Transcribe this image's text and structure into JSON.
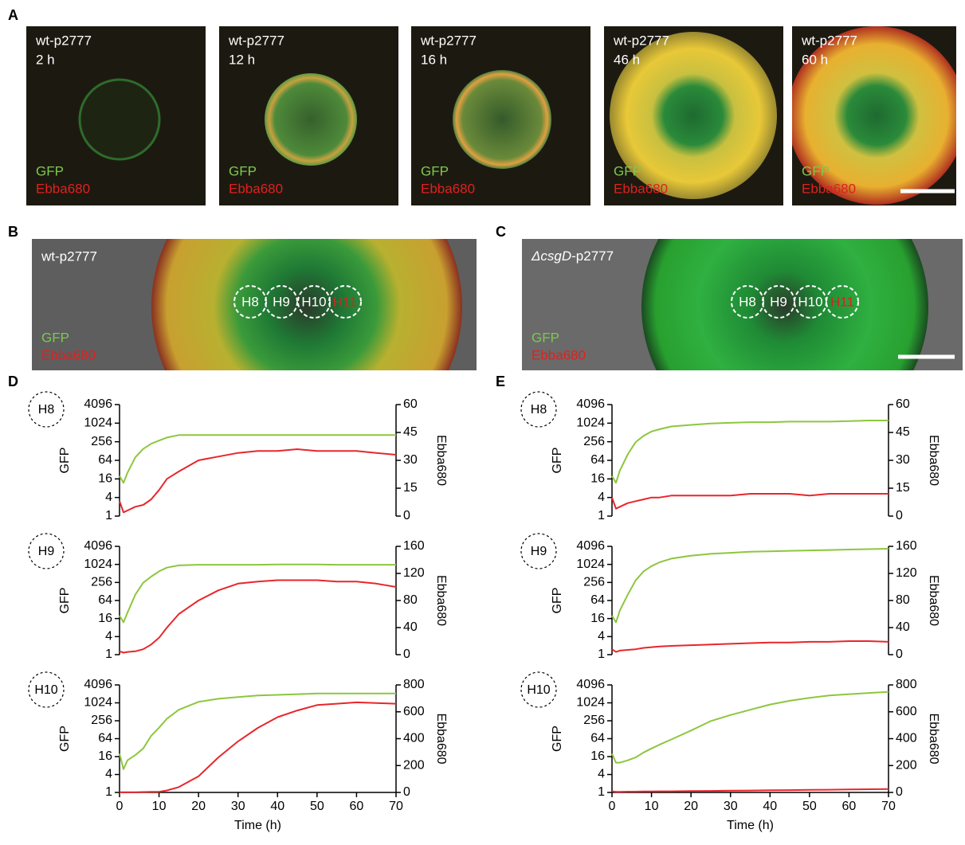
{
  "panel_labels": [
    "A",
    "B",
    "C",
    "D",
    "E"
  ],
  "panel_a": [
    {
      "strain": "wt-p2777",
      "time": "2 h",
      "channel1": "GFP",
      "channel2": "Ebba680"
    },
    {
      "strain": "wt-p2777",
      "time": "12 h",
      "channel1": "GFP",
      "channel2": "Ebba680"
    },
    {
      "strain": "wt-p2777",
      "time": "16 h",
      "channel1": "GFP",
      "channel2": "Ebba680"
    },
    {
      "strain": "wt-p2777",
      "time": "46 h",
      "channel1": "GFP",
      "channel2": "Ebba680"
    },
    {
      "strain": "wt-p2777",
      "time": "60 h",
      "channel1": "GFP",
      "channel2": "Ebba680"
    }
  ],
  "panel_b": {
    "strain": "wt-p2777",
    "regions": [
      "H8",
      "H9",
      "H10",
      "H11"
    ],
    "channel1": "GFP",
    "channel2": "Ebba680"
  },
  "panel_c": {
    "strain_italic": "ΔcsgD",
    "strain_rest": "-p2777",
    "regions": [
      "H8",
      "H9",
      "H10",
      "H11"
    ],
    "channel1": "GFP",
    "channel2": "Ebba680"
  },
  "chart_data": [
    {
      "type": "line",
      "label": "H8",
      "ylabel": "GFP",
      "y2label": "Ebba680",
      "log_y": true,
      "x": [
        0,
        1,
        2,
        4,
        6,
        8,
        10,
        12,
        15,
        20,
        25,
        30,
        35,
        40,
        45,
        50,
        55,
        60,
        65,
        70
      ],
      "series": [
        {
          "color": "#8dc63f",
          "values": [
            20,
            12,
            25,
            80,
            150,
            220,
            280,
            350,
            420,
            420,
            420,
            420,
            420,
            420,
            420,
            420,
            420,
            420,
            420,
            420
          ]
        },
        {
          "color": "#e8262b",
          "axis": "y2",
          "values": [
            8,
            2,
            3,
            5,
            6,
            9,
            14,
            20,
            24,
            30,
            32,
            34,
            35,
            35,
            36,
            35,
            35,
            35,
            34,
            33
          ]
        }
      ],
      "xlim": [
        0,
        70
      ],
      "ylim": [
        1,
        4096
      ],
      "yticks": [
        1,
        4,
        16,
        64,
        256,
        1024,
        4096
      ],
      "y2lim": [
        0,
        60
      ],
      "y2ticks": [
        0,
        15,
        30,
        45,
        60
      ]
    },
    {
      "type": "line",
      "label": "H9",
      "ylabel": "GFP",
      "y2label": "Ebba680",
      "log_y": true,
      "x": [
        0,
        1,
        2,
        4,
        6,
        8,
        10,
        12,
        15,
        20,
        25,
        30,
        35,
        40,
        45,
        50,
        55,
        60,
        65,
        70
      ],
      "series": [
        {
          "color": "#8dc63f",
          "values": [
            20,
            12,
            25,
            100,
            250,
            400,
            600,
            800,
            950,
            1000,
            1000,
            1000,
            1000,
            1020,
            1020,
            1020,
            1000,
            1000,
            1000,
            1000
          ]
        },
        {
          "color": "#e8262b",
          "axis": "y2",
          "values": [
            5,
            3,
            4,
            5,
            8,
            15,
            25,
            40,
            60,
            80,
            95,
            105,
            108,
            110,
            110,
            110,
            108,
            108,
            105,
            100
          ]
        }
      ],
      "xlim": [
        0,
        70
      ],
      "ylim": [
        1,
        4096
      ],
      "yticks": [
        1,
        4,
        16,
        64,
        256,
        1024,
        4096
      ],
      "y2lim": [
        0,
        160
      ],
      "y2ticks": [
        0,
        40,
        80,
        120,
        160
      ]
    },
    {
      "type": "line",
      "label": "H10",
      "ylabel": "GFP",
      "y2label": "Ebba680",
      "xlabel": "Time (h)",
      "log_y": true,
      "x": [
        0,
        1,
        2,
        4,
        6,
        8,
        10,
        12,
        15,
        20,
        25,
        30,
        35,
        40,
        45,
        50,
        55,
        60,
        65,
        70
      ],
      "series": [
        {
          "color": "#8dc63f",
          "values": [
            20,
            6,
            12,
            18,
            30,
            80,
            150,
            300,
            600,
            1100,
            1400,
            1600,
            1800,
            1900,
            2000,
            2100,
            2100,
            2100,
            2100,
            2100
          ]
        },
        {
          "color": "#e8262b",
          "axis": "y2",
          "values": [
            2,
            2,
            2,
            2,
            3,
            4,
            5,
            15,
            40,
            120,
            260,
            380,
            480,
            560,
            610,
            650,
            660,
            670,
            665,
            660
          ]
        }
      ],
      "xlim": [
        0,
        70
      ],
      "xticks": [
        0,
        10,
        20,
        30,
        40,
        50,
        60,
        70
      ],
      "ylim": [
        1,
        4096
      ],
      "yticks": [
        1,
        4,
        16,
        64,
        256,
        1024,
        4096
      ],
      "y2lim": [
        0,
        800
      ],
      "y2ticks": [
        0,
        200,
        400,
        600,
        800
      ]
    },
    {
      "type": "line",
      "label": "H8",
      "ylabel": "GFP",
      "y2label": "Ebba680",
      "log_y": true,
      "x": [
        0,
        1,
        2,
        4,
        6,
        8,
        10,
        12,
        15,
        20,
        25,
        30,
        35,
        40,
        45,
        50,
        55,
        60,
        65,
        70
      ],
      "series": [
        {
          "color": "#8dc63f",
          "values": [
            20,
            12,
            30,
            100,
            250,
            400,
            550,
            650,
            800,
            900,
            1000,
            1050,
            1100,
            1100,
            1150,
            1150,
            1150,
            1200,
            1250,
            1250
          ]
        },
        {
          "color": "#e8262b",
          "axis": "y2",
          "values": [
            10,
            4,
            5,
            7,
            8,
            9,
            10,
            10,
            11,
            11,
            11,
            11,
            12,
            12,
            12,
            11,
            12,
            12,
            12,
            12
          ]
        }
      ],
      "xlim": [
        0,
        70
      ],
      "ylim": [
        1,
        4096
      ],
      "yticks": [
        1,
        4,
        16,
        64,
        256,
        1024,
        4096
      ],
      "y2lim": [
        0,
        60
      ],
      "y2ticks": [
        0,
        15,
        30,
        45,
        60
      ]
    },
    {
      "type": "line",
      "label": "H9",
      "ylabel": "GFP",
      "y2label": "Ebba680",
      "log_y": true,
      "x": [
        0,
        1,
        2,
        4,
        6,
        8,
        10,
        12,
        15,
        20,
        25,
        30,
        35,
        40,
        45,
        50,
        55,
        60,
        65,
        70
      ],
      "series": [
        {
          "color": "#8dc63f",
          "values": [
            20,
            12,
            30,
            100,
            300,
            600,
            900,
            1200,
            1600,
            2000,
            2300,
            2500,
            2700,
            2800,
            2900,
            3000,
            3100,
            3200,
            3300,
            3400
          ]
        },
        {
          "color": "#e8262b",
          "axis": "y2",
          "values": [
            8,
            4,
            6,
            7,
            8,
            10,
            11,
            12,
            13,
            14,
            15,
            16,
            17,
            18,
            18,
            19,
            19,
            20,
            20,
            19
          ]
        }
      ],
      "xlim": [
        0,
        70
      ],
      "ylim": [
        1,
        4096
      ],
      "yticks": [
        1,
        4,
        16,
        64,
        256,
        1024,
        4096
      ],
      "y2lim": [
        0,
        160
      ],
      "y2ticks": [
        0,
        40,
        80,
        120,
        160
      ]
    },
    {
      "type": "line",
      "label": "H10",
      "ylabel": "GFP",
      "y2label": "Ebba680",
      "xlabel": "Time (h)",
      "log_y": true,
      "x": [
        0,
        1,
        2,
        4,
        6,
        8,
        10,
        12,
        15,
        20,
        25,
        30,
        35,
        40,
        45,
        50,
        55,
        60,
        65,
        70
      ],
      "series": [
        {
          "color": "#8dc63f",
          "values": [
            20,
            10,
            10,
            12,
            15,
            22,
            30,
            40,
            60,
            120,
            250,
            400,
            600,
            900,
            1200,
            1500,
            1800,
            2000,
            2200,
            2400
          ]
        },
        {
          "color": "#e8262b",
          "axis": "y2",
          "values": [
            8,
            5,
            5,
            6,
            6,
            7,
            7,
            8,
            8,
            10,
            11,
            13,
            14,
            16,
            17,
            19,
            20,
            22,
            24,
            25
          ]
        }
      ],
      "xlim": [
        0,
        70
      ],
      "xticks": [
        0,
        10,
        20,
        30,
        40,
        50,
        60,
        70
      ],
      "ylim": [
        1,
        4096
      ],
      "yticks": [
        1,
        4,
        16,
        64,
        256,
        1024,
        4096
      ],
      "y2lim": [
        0,
        800
      ],
      "y2ticks": [
        0,
        200,
        400,
        600,
        800
      ]
    }
  ]
}
